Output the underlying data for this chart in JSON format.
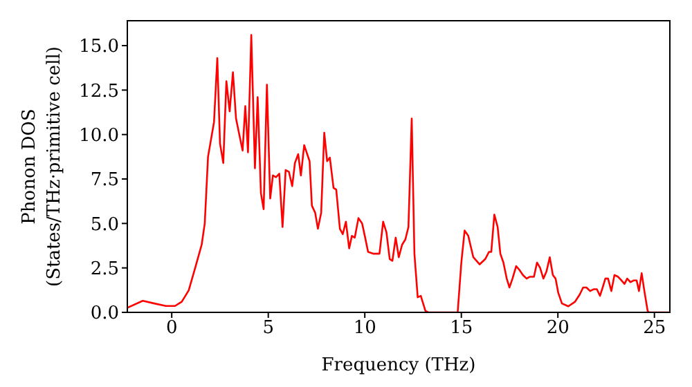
{
  "chart_data": {
    "type": "line",
    "xlabel": "Frequency (THz)",
    "ylabel": "Phonon DOS\n(States/THz·primitive cell)",
    "xlim": [
      -2.3,
      25.8
    ],
    "ylim": [
      0,
      16.4
    ],
    "xticks": [
      0,
      5,
      10,
      15,
      20,
      25
    ],
    "yticks": [
      {
        "value": 0,
        "label": "0.0"
      },
      {
        "value": 2.5,
        "label": "2.5"
      },
      {
        "value": 5,
        "label": "5.0"
      },
      {
        "value": 7.5,
        "label": "7.5"
      },
      {
        "value": 10,
        "label": "10.0"
      },
      {
        "value": 12.5,
        "label": "12.5"
      },
      {
        "value": 15,
        "label": "15.0"
      }
    ],
    "grid": false,
    "legend": false,
    "marker": "none",
    "line_style": "solid",
    "series": [
      {
        "color": "#ff0000",
        "x": [
          -2.3,
          -1.5,
          -0.9,
          -0.3,
          0.17,
          0.52,
          0.88,
          1.24,
          1.55,
          1.71,
          1.88,
          2.19,
          2.36,
          2.5,
          2.67,
          2.83,
          3.0,
          3.17,
          3.33,
          3.5,
          3.67,
          3.81,
          3.95,
          4.12,
          4.31,
          4.45,
          4.62,
          4.76,
          4.93,
          5.1,
          5.24,
          5.4,
          5.57,
          5.74,
          5.9,
          6.07,
          6.24,
          6.38,
          6.55,
          6.69,
          6.86,
          7.14,
          7.26,
          7.43,
          7.57,
          7.74,
          7.9,
          8.05,
          8.19,
          8.38,
          8.52,
          8.71,
          8.86,
          9.02,
          9.19,
          9.33,
          9.48,
          9.67,
          9.86,
          10.0,
          10.17,
          10.43,
          10.76,
          10.95,
          11.12,
          11.29,
          11.43,
          11.6,
          11.76,
          11.93,
          12.1,
          12.26,
          12.43,
          12.57,
          12.74,
          12.9,
          13.14,
          13.29,
          14.81,
          15.0,
          15.17,
          15.36,
          15.62,
          15.95,
          16.24,
          16.43,
          16.55,
          16.71,
          16.88,
          17.02,
          17.18,
          17.35,
          17.49,
          17.65,
          17.84,
          18.0,
          18.19,
          18.38,
          18.54,
          18.76,
          18.92,
          19.08,
          19.25,
          19.41,
          19.58,
          19.74,
          19.88,
          20.02,
          20.21,
          20.54,
          20.89,
          21.13,
          21.31,
          21.48,
          21.67,
          21.85,
          22.02,
          22.18,
          22.32,
          22.46,
          22.6,
          22.77,
          22.93,
          23.12,
          23.29,
          23.45,
          23.59,
          23.76,
          23.94,
          24.08,
          24.2,
          24.34,
          24.48,
          24.65,
          24.72,
          25.8
        ],
        "values": [
          0.26,
          0.65,
          0.5,
          0.36,
          0.36,
          0.6,
          1.24,
          2.6,
          3.8,
          5.0,
          8.75,
          10.7,
          14.3,
          9.5,
          8.4,
          13.0,
          11.3,
          13.5,
          10.9,
          10.0,
          9.1,
          11.6,
          9.0,
          15.6,
          8.1,
          12.1,
          6.7,
          5.8,
          12.8,
          6.4,
          7.7,
          7.6,
          7.8,
          4.8,
          8.0,
          7.9,
          7.1,
          8.4,
          8.9,
          7.7,
          9.4,
          8.5,
          6.0,
          5.6,
          4.7,
          5.6,
          10.1,
          8.5,
          8.7,
          7.0,
          6.9,
          4.7,
          4.4,
          5.1,
          3.6,
          4.3,
          4.2,
          5.3,
          5.0,
          4.3,
          3.4,
          3.3,
          3.3,
          5.1,
          4.5,
          3.0,
          2.9,
          4.2,
          3.1,
          3.8,
          4.1,
          4.8,
          10.9,
          3.3,
          0.85,
          0.93,
          0.08,
          0,
          0,
          2.8,
          4.6,
          4.3,
          3.1,
          2.7,
          3.0,
          3.4,
          3.4,
          5.5,
          4.8,
          3.3,
          2.8,
          1.9,
          1.4,
          1.9,
          2.6,
          2.4,
          2.1,
          1.9,
          2.0,
          2.0,
          2.8,
          2.5,
          1.9,
          2.3,
          3.1,
          2.1,
          1.9,
          1.1,
          0.5,
          0.34,
          0.6,
          1.0,
          1.4,
          1.4,
          1.2,
          1.3,
          1.3,
          0.93,
          1.4,
          1.9,
          1.9,
          1.2,
          2.1,
          2.0,
          1.8,
          1.6,
          1.9,
          1.7,
          1.8,
          1.8,
          1.2,
          2.2,
          1.2,
          0.08,
          0,
          0
        ]
      }
    ]
  }
}
